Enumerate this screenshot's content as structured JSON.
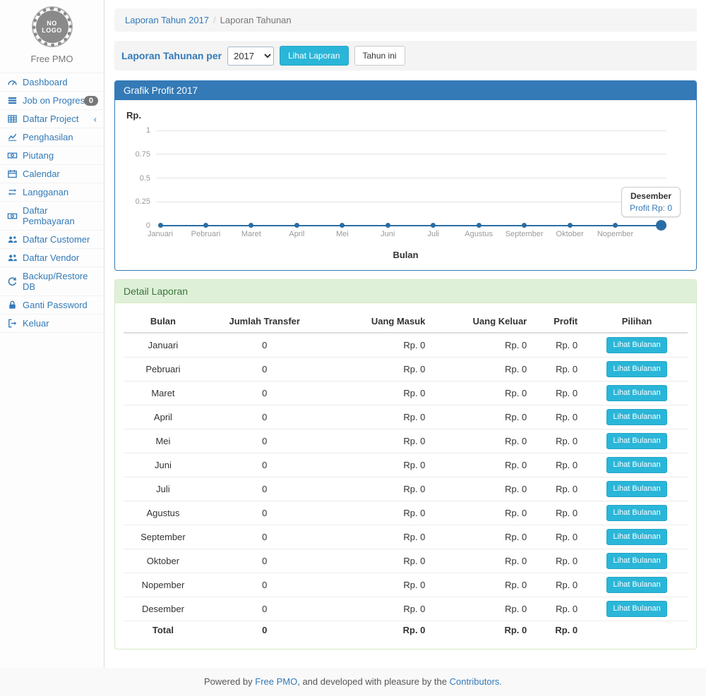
{
  "colors": {
    "accent_blue": "#337ab7",
    "info_button_cyan": "#2ab6d8",
    "success_header_bg": "#dff0d8",
    "success_header_text": "#3c763d",
    "success_border": "#d6e9c6",
    "badge_gray": "#777777",
    "chart_line": "#2a6da4",
    "breadcrumb_bg": "#f5f5f5"
  },
  "sidebar": {
    "logo_line1": "NO",
    "logo_line2": "LOGO",
    "app_name": "Free PMO",
    "items": [
      {
        "icon": "dashboard-icon",
        "label": "Dashboard"
      },
      {
        "icon": "list-icon",
        "label": "Job on Progress",
        "badge": "0"
      },
      {
        "icon": "table-icon",
        "label": "Daftar Project",
        "chevron": "‹"
      },
      {
        "icon": "line-chart-icon",
        "label": "Penghasilan"
      },
      {
        "icon": "money-icon",
        "label": "Piutang"
      },
      {
        "icon": "calendar-icon",
        "label": "Calendar"
      },
      {
        "icon": "retweet-icon",
        "label": "Langganan"
      },
      {
        "icon": "money-icon",
        "label": "Daftar Pembayaran"
      },
      {
        "icon": "users-icon",
        "label": "Daftar Customer"
      },
      {
        "icon": "users-icon",
        "label": "Daftar Vendor"
      },
      {
        "icon": "refresh-icon",
        "label": "Backup/Restore DB"
      },
      {
        "icon": "lock-icon",
        "label": "Ganti Password"
      },
      {
        "icon": "sign-out-icon",
        "label": "Keluar"
      }
    ]
  },
  "breadcrumb": {
    "link": "Laporan Tahun 2017",
    "separator": "/",
    "current": "Laporan Tahunan"
  },
  "filter_bar": {
    "label": "Laporan Tahunan per",
    "year": "2017",
    "view_button": "Lihat Laporan",
    "this_year_button": "Tahun ini"
  },
  "chart_panel": {
    "title": "Grafik Profit 2017"
  },
  "chart_data": {
    "type": "line",
    "title": "Grafik Profit 2017",
    "xlabel": "Bulan",
    "ylabel": "Rp.",
    "categories": [
      "Januari",
      "Pebruari",
      "Maret",
      "April",
      "Mei",
      "Juni",
      "Juli",
      "Agustus",
      "September",
      "Oktober",
      "Nopember",
      "Desember"
    ],
    "values": [
      0,
      0,
      0,
      0,
      0,
      0,
      0,
      0,
      0,
      0,
      0,
      0
    ],
    "yticks": [
      1,
      0.75,
      0.5,
      0.25,
      0
    ],
    "ylim": [
      0,
      1
    ],
    "grid": true,
    "last_x_label_hidden": true,
    "tooltip": {
      "month": "Desember",
      "text": "Profit Rp: 0"
    }
  },
  "detail_panel": {
    "title": "Detail Laporan",
    "columns": [
      "Bulan",
      "Jumlah Transfer",
      "Uang Masuk",
      "Uang Keluar",
      "Profit",
      "Pilihan"
    ],
    "action_label": "Lihat Bulanan",
    "rows": [
      {
        "bulan": "Januari",
        "jumlah": "0",
        "masuk": "Rp. 0",
        "keluar": "Rp. 0",
        "profit": "Rp. 0"
      },
      {
        "bulan": "Pebruari",
        "jumlah": "0",
        "masuk": "Rp. 0",
        "keluar": "Rp. 0",
        "profit": "Rp. 0"
      },
      {
        "bulan": "Maret",
        "jumlah": "0",
        "masuk": "Rp. 0",
        "keluar": "Rp. 0",
        "profit": "Rp. 0"
      },
      {
        "bulan": "April",
        "jumlah": "0",
        "masuk": "Rp. 0",
        "keluar": "Rp. 0",
        "profit": "Rp. 0"
      },
      {
        "bulan": "Mei",
        "jumlah": "0",
        "masuk": "Rp. 0",
        "keluar": "Rp. 0",
        "profit": "Rp. 0"
      },
      {
        "bulan": "Juni",
        "jumlah": "0",
        "masuk": "Rp. 0",
        "keluar": "Rp. 0",
        "profit": "Rp. 0"
      },
      {
        "bulan": "Juli",
        "jumlah": "0",
        "masuk": "Rp. 0",
        "keluar": "Rp. 0",
        "profit": "Rp. 0"
      },
      {
        "bulan": "Agustus",
        "jumlah": "0",
        "masuk": "Rp. 0",
        "keluar": "Rp. 0",
        "profit": "Rp. 0"
      },
      {
        "bulan": "September",
        "jumlah": "0",
        "masuk": "Rp. 0",
        "keluar": "Rp. 0",
        "profit": "Rp. 0"
      },
      {
        "bulan": "Oktober",
        "jumlah": "0",
        "masuk": "Rp. 0",
        "keluar": "Rp. 0",
        "profit": "Rp. 0"
      },
      {
        "bulan": "Nopember",
        "jumlah": "0",
        "masuk": "Rp. 0",
        "keluar": "Rp. 0",
        "profit": "Rp. 0"
      },
      {
        "bulan": "Desember",
        "jumlah": "0",
        "masuk": "Rp. 0",
        "keluar": "Rp. 0",
        "profit": "Rp. 0"
      }
    ],
    "total": {
      "bulan": "Total",
      "jumlah": "0",
      "masuk": "Rp. 0",
      "keluar": "Rp. 0",
      "profit": "Rp. 0"
    }
  },
  "footer": {
    "prefix": "Powered by ",
    "link1": "Free PMO",
    "middle": ", and developed with pleasure by the ",
    "link2": "Contributors."
  }
}
